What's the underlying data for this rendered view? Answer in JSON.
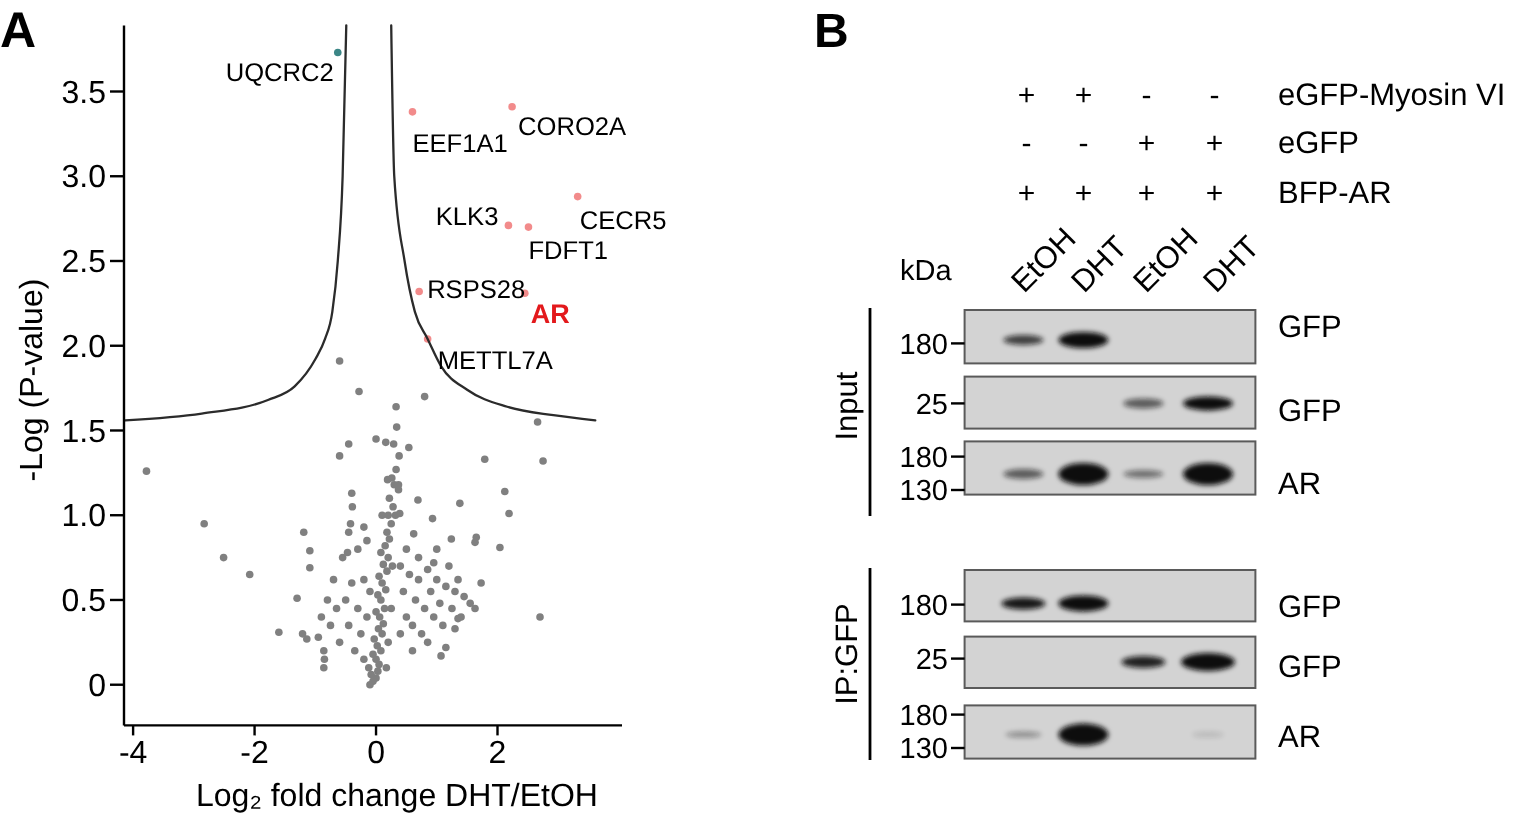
{
  "chart_data": [
    {
      "type": "scatter",
      "title": "A",
      "xlabel": "Log₂ fold change DHT/EtOH",
      "ylabel": "-Log (P-value)",
      "xlim": [
        -4.15,
        4.05
      ],
      "ylim": [
        -0.24,
        3.89
      ],
      "xticks": [
        -4,
        -2,
        0,
        2
      ],
      "yticks": [
        0,
        0.5,
        {
          "value": 1,
          "label": "1.0"
        },
        1.5,
        {
          "value": 2,
          "label": "2.0"
        },
        2.5,
        {
          "value": 3,
          "label": "3.0"
        },
        3.5
      ],
      "marker": "circle",
      "series": [
        {
          "color": "#808080",
          "x": [
            -0.1,
            -0.05,
            0.0,
            -0.08,
            0.03,
            -0.12,
            0.05,
            0.0,
            -0.05,
            0.08,
            0.02,
            -0.03,
            0.1,
            0.04,
            0.12,
            0.06,
            0.0,
            0.14,
            0.08,
            0.03,
            0.16,
            0.1,
            0.05,
            0.18,
            0.12,
            0.2,
            0.08,
            0.15,
            0.22,
            0.18,
            0.25,
            0.2,
            0.28,
            0.22,
            0.3,
            0.26,
            0.33,
            0.37,
            0.32,
            0.27,
            0.25,
            0.2,
            0.17,
            0.4,
            0.5,
            0.45,
            0.6,
            0.65,
            0.55,
            0.7,
            0.8,
            0.75,
            0.9,
            0.95,
            0.85,
            1.0,
            1.05,
            1.1,
            1.15,
            1.2,
            1.25,
            1.3,
            1.35,
            1.4,
            1.45,
            1.55,
            0.6,
            0.7,
            0.5,
            1.0,
            0.4,
            0.85,
            1.15,
            0.95,
            1.3,
            -0.2,
            -0.25,
            -0.3,
            -0.35,
            -0.4,
            -0.45,
            -0.5,
            -0.55,
            -0.6,
            -0.65,
            -0.7,
            -0.75,
            -0.8,
            -0.85,
            -0.9,
            -0.95,
            -0.15,
            -0.2,
            -0.3,
            -0.45,
            -0.15,
            -0.1,
            0.1,
            -0.4,
            -0.39,
            -0.42,
            0.39,
            0.93,
            0.69,
            0.62,
            1.24,
            1.65,
            1.63,
            0.8,
            0.33,
            0.34,
            0.0,
            0.16,
            0.29,
            0.54,
            -0.45,
            -0.6,
            0.38,
            0.19,
            0.37,
            -1.19,
            -1.09,
            -1.09,
            -1.3,
            -1.21,
            -1.14,
            -0.86,
            -0.86,
            1.07,
            1.73,
            1.63,
            1.35,
            -0.6,
            -0.28,
            -3.78,
            1.79,
            2.75,
            2.66,
            2.12,
            1.38,
            2.19,
            -2.83,
            -2.51,
            -2.08,
            -1.6,
            2.04,
            2.7,
            -0.2,
            -0.47
          ],
          "values": [
            0.0,
            0.02,
            0.04,
            0.06,
            0.08,
            0.1,
            0.12,
            0.15,
            0.18,
            0.2,
            0.23,
            0.27,
            0.3,
            0.33,
            0.36,
            0.4,
            0.43,
            0.45,
            0.5,
            0.53,
            0.56,
            0.6,
            0.64,
            0.67,
            0.71,
            0.75,
            0.78,
            0.82,
            0.86,
            0.9,
            0.95,
            1.0,
            1.05,
            1.1,
            1.18,
            1.22,
            1.27,
            1.18,
            1.0,
            0.7,
            0.45,
            0.25,
            0.1,
            0.3,
            0.4,
            0.55,
            0.35,
            0.5,
            0.65,
            0.62,
            0.45,
            0.3,
            0.55,
            0.4,
            0.68,
            0.62,
            0.48,
            0.35,
            0.58,
            0.7,
            0.45,
            0.55,
            0.62,
            0.4,
            0.52,
            0.48,
            0.2,
            0.75,
            0.8,
            0.8,
            0.7,
            0.25,
            0.22,
            0.72,
            0.33,
            0.15,
            0.3,
            0.45,
            0.2,
            0.6,
            0.35,
            0.5,
            0.75,
            0.25,
            0.45,
            0.62,
            0.35,
            0.5,
            0.15,
            0.4,
            0.28,
            0.4,
            0.62,
            0.8,
            0.9,
            0.85,
            0.55,
            1.0,
            1.13,
            1.05,
            0.95,
            1.01,
            0.98,
            1.09,
            0.89,
            0.86,
            0.87,
            0.84,
            1.7,
            1.64,
            1.52,
            1.45,
            1.43,
            1.42,
            1.4,
            1.42,
            1.35,
            1.35,
            1.21,
            1.15,
            0.9,
            0.79,
            0.69,
            0.51,
            0.3,
            0.27,
            0.2,
            0.1,
            0.17,
            0.6,
            0.45,
            0.39,
            1.91,
            1.73,
            1.26,
            1.33,
            1.32,
            1.55,
            1.14,
            1.07,
            1.01,
            0.95,
            0.75,
            0.65,
            0.31,
            0.81,
            0.4,
            0.93,
            0.78
          ]
        },
        {
          "color": "#f28b8b",
          "x": [
            0.6,
            2.24,
            2.18,
            3.32,
            2.51,
            0.71,
            2.45,
            0.85
          ],
          "values": [
            3.38,
            3.41,
            2.71,
            2.88,
            2.7,
            2.32,
            2.31,
            2.04
          ]
        },
        {
          "color": "#3b8686",
          "x": [
            -0.63
          ],
          "values": [
            3.73
          ]
        },
        {
          "type": "line",
          "marker": "none",
          "color": "#2b2b2b",
          "x": [
            -4.13,
            -2.87,
            -1.78,
            -1.34,
            -1.0,
            -0.84,
            -0.72,
            -0.63,
            -0.55,
            -0.49
          ],
          "values": [
            1.56,
            1.6,
            1.68,
            1.76,
            1.92,
            2.04,
            2.2,
            2.5,
            3.0,
            3.89
          ]
        },
        {
          "type": "line",
          "marker": "none",
          "color": "#2b2b2b",
          "x": [
            0.25,
            0.3,
            0.47,
            0.64,
            0.85,
            1.07,
            1.5,
            2.16,
            2.92,
            3.61
          ],
          "values": [
            3.89,
            3.0,
            2.5,
            2.2,
            2.04,
            1.88,
            1.74,
            1.64,
            1.59,
            1.56
          ]
        }
      ],
      "annotations": [
        {
          "text": "UQCRC2",
          "x": -0.63,
          "y": 3.73
        },
        {
          "text": "EEF1A1",
          "x": 0.6,
          "y": 3.38
        },
        {
          "text": "CORO2A",
          "x": 2.24,
          "y": 3.41
        },
        {
          "text": "KLK3",
          "x": 2.18,
          "y": 2.71
        },
        {
          "text": "CECR5",
          "x": 3.32,
          "y": 2.88
        },
        {
          "text": "FDFT1",
          "x": 2.51,
          "y": 2.7
        },
        {
          "text": "RSPS28",
          "x": 0.71,
          "y": 2.32
        },
        {
          "text": "AR",
          "x": 2.45,
          "y": 2.31
        },
        {
          "text": "METTL7A",
          "x": 0.85,
          "y": 2.04
        }
      ]
    },
    {
      "type": "other",
      "title": "B",
      "annotations": [
        "+",
        "+",
        "-",
        "-",
        "eGFP-Myosin VI",
        "-",
        "-",
        "+",
        "+",
        "eGFP",
        "+",
        "+",
        "+",
        "+",
        "BFP-AR",
        "kDa",
        "EtOH",
        "DHT",
        "EtOH",
        "DHT",
        "Input",
        "180",
        "GFP",
        "25",
        "GFP",
        "180",
        "130",
        "AR",
        "IP:GFP",
        "180",
        "GFP",
        "25",
        "GFP",
        "180",
        "130",
        "AR"
      ]
    }
  ]
}
